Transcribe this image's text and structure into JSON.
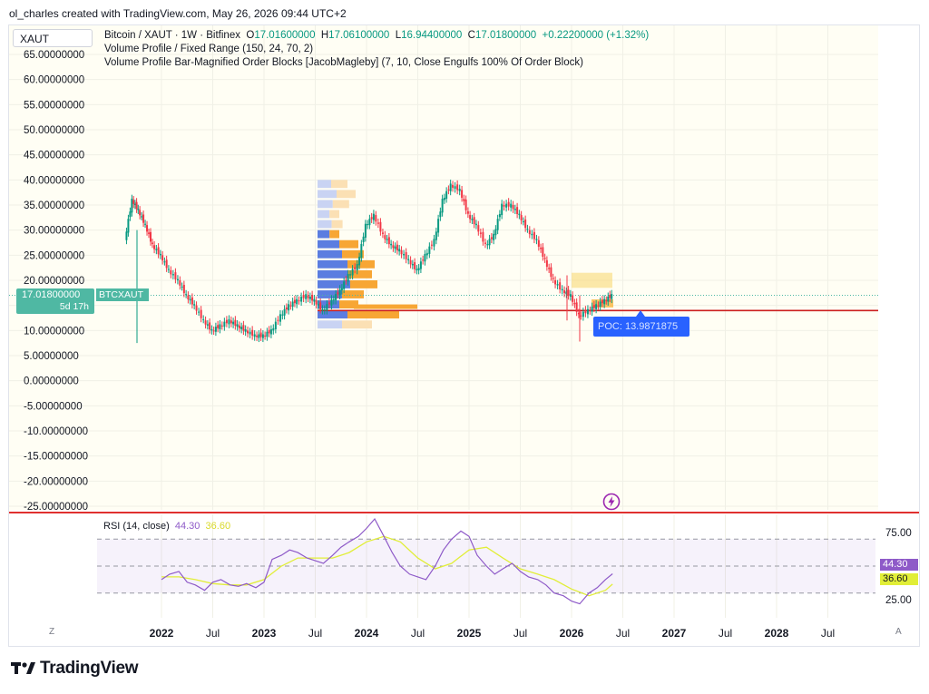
{
  "header": {
    "caption": "ol_charles created with TradingView.com, May 26, 2026 09:44 UTC+2"
  },
  "symbol": "XAUT",
  "legend": {
    "instrument": "Bitcoin / XAUT · 1W · Bitfinex",
    "open_label": "O",
    "open": "17.01600000",
    "high_label": "H",
    "high": "17.06100000",
    "low_label": "L",
    "low": "16.94400000",
    "close_label": "C",
    "close": "17.01800000",
    "change": "+0.22200000 (+1.32%)",
    "indicator_1": "Volume Profile / Fixed Range (150, 24, 70, 2)",
    "indicator_2": "Volume Profile Bar-Magnified Order Blocks [JacobMagleby] (7, 10, Close Engulfs 100% Of Order Block)"
  },
  "price_badge": {
    "price": "17.01800000",
    "countdown": "5d 17h",
    "symbol_tag": "BTCXAUT"
  },
  "poc_label": "POC: 13.9871875",
  "rsi_legend": {
    "name": "RSI (14, close)",
    "rsi_value": "44.30",
    "ma_value": "36.60"
  },
  "rsi_badges": {
    "rsi": "44.30",
    "ma": "36.60"
  },
  "corner_labels": {
    "left": "Z",
    "right": "A"
  },
  "brand": "TradingView",
  "colors": {
    "up": "#089981",
    "down": "#f23645",
    "rsi_line": "#8e5ac8",
    "rsi_ma": "#e1ee37",
    "poc_line": "#cc1f1f",
    "poc_badge": "#2962ff",
    "price_badge": "#4fb8a3",
    "volume_blue": "#5b7de0",
    "volume_orange": "#f7a634"
  },
  "chart_data": [
    {
      "type": "line",
      "title": "",
      "y_axis_ticks": [
        "65.00000000",
        "60.00000000",
        "55.00000000",
        "50.00000000",
        "45.00000000",
        "40.00000000",
        "35.00000000",
        "30.00000000",
        "25.00000000",
        "20.00000000",
        "15.00000000",
        "10.00000000",
        "5.00000000",
        "0.00000000",
        "-5.00000000",
        "-10.00000000",
        "-15.00000000",
        "-20.00000000",
        "-25.00000000"
      ],
      "y_axis_tick_values": [
        65,
        60,
        55,
        50,
        45,
        40,
        35,
        30,
        25,
        20,
        15,
        10,
        5,
        0,
        -5,
        -10,
        -15,
        -20,
        -25
      ],
      "ylim": [
        -25,
        65
      ],
      "x_axis_ticks": [
        "2022",
        "Jul",
        "2023",
        "Jul",
        "2024",
        "Jul",
        "2025",
        "Jul",
        "2026",
        "Jul",
        "2027",
        "Jul",
        "2028",
        "Jul"
      ],
      "x_axis_tick_values": [
        2022.0,
        2022.5,
        2023.0,
        2023.5,
        2024.0,
        2024.5,
        2025.0,
        2025.5,
        2026.0,
        2026.5,
        2027.0,
        2027.5,
        2028.0,
        2028.5
      ],
      "series": [
        {
          "x": [
            2021.65,
            2021.72,
            2021.78,
            2021.85,
            2021.92,
            2022.0,
            2022.08,
            2022.17,
            2022.25,
            2022.33,
            2022.42,
            2022.5,
            2022.58,
            2022.67,
            2022.75,
            2022.83,
            2022.92,
            2023.0,
            2023.08,
            2023.17,
            2023.25,
            2023.33,
            2023.42,
            2023.5,
            2023.58,
            2023.67,
            2023.75,
            2023.83,
            2023.92,
            2024.0,
            2024.08,
            2024.17,
            2024.25,
            2024.33,
            2024.42,
            2024.5,
            2024.58,
            2024.67,
            2024.75,
            2024.83,
            2024.92,
            2025.0,
            2025.08,
            2025.17,
            2025.25,
            2025.33,
            2025.42,
            2025.5,
            2025.58,
            2025.67,
            2025.75,
            2025.83,
            2025.92,
            2026.0,
            2026.08,
            2026.17,
            2026.25,
            2026.33,
            2026.4
          ],
          "values": [
            28,
            36,
            34,
            31,
            27,
            25,
            22,
            20,
            17,
            15,
            12,
            10,
            11,
            12,
            11,
            10,
            9,
            9,
            10,
            13,
            15,
            16,
            17,
            16,
            14,
            16,
            18,
            21,
            23,
            31,
            33,
            29,
            27,
            26,
            24,
            22,
            25,
            28,
            36,
            39,
            38,
            33,
            31,
            27,
            29,
            35,
            35,
            33,
            30,
            28,
            24,
            20,
            18,
            17,
            13,
            14,
            15,
            16,
            17.02
          ]
        }
      ],
      "price_line": 17.018,
      "poc_level": 13.9871875
    },
    {
      "type": "line",
      "title": "RSI (14, close)",
      "y_axis_ticks": [
        "75.00",
        "50.00",
        "25.00"
      ],
      "y_axis_tick_values": [
        75,
        50,
        25
      ],
      "ylim": [
        15,
        85
      ],
      "x_axis_ticks": [],
      "series": [
        {
          "name": "RSI",
          "x": [
            2022.0,
            2022.08,
            2022.17,
            2022.25,
            2022.33,
            2022.42,
            2022.5,
            2022.58,
            2022.67,
            2022.75,
            2022.83,
            2022.92,
            2023.0,
            2023.08,
            2023.17,
            2023.25,
            2023.33,
            2023.42,
            2023.5,
            2023.58,
            2023.67,
            2023.75,
            2023.83,
            2023.92,
            2024.0,
            2024.08,
            2024.17,
            2024.25,
            2024.33,
            2024.42,
            2024.5,
            2024.58,
            2024.67,
            2024.75,
            2024.83,
            2024.92,
            2025.0,
            2025.08,
            2025.17,
            2025.25,
            2025.33,
            2025.42,
            2025.5,
            2025.58,
            2025.67,
            2025.75,
            2025.83,
            2025.92,
            2026.0,
            2026.08,
            2026.17,
            2026.25,
            2026.33,
            2026.4
          ],
          "values": [
            40,
            44,
            46,
            38,
            36,
            32,
            38,
            40,
            36,
            35,
            37,
            34,
            38,
            55,
            58,
            62,
            60,
            56,
            54,
            52,
            58,
            64,
            68,
            72,
            78,
            85,
            72,
            60,
            50,
            44,
            42,
            40,
            50,
            62,
            70,
            76,
            72,
            58,
            50,
            44,
            48,
            52,
            46,
            42,
            40,
            36,
            30,
            28,
            24,
            22,
            30,
            34,
            40,
            44.3
          ]
        },
        {
          "name": "RSI-based MA",
          "x": [
            2022.0,
            2022.17,
            2022.33,
            2022.5,
            2022.67,
            2022.83,
            2023.0,
            2023.17,
            2023.33,
            2023.5,
            2023.67,
            2023.83,
            2024.0,
            2024.17,
            2024.33,
            2024.5,
            2024.67,
            2024.83,
            2025.0,
            2025.17,
            2025.33,
            2025.5,
            2025.67,
            2025.83,
            2026.0,
            2026.17,
            2026.33,
            2026.4
          ],
          "values": [
            42,
            42,
            40,
            37,
            36,
            36,
            40,
            50,
            56,
            56,
            56,
            60,
            68,
            72,
            68,
            56,
            48,
            52,
            62,
            64,
            56,
            48,
            44,
            40,
            33,
            28,
            32,
            36.6
          ]
        }
      ],
      "levels": [
        70,
        50,
        30
      ]
    }
  ]
}
